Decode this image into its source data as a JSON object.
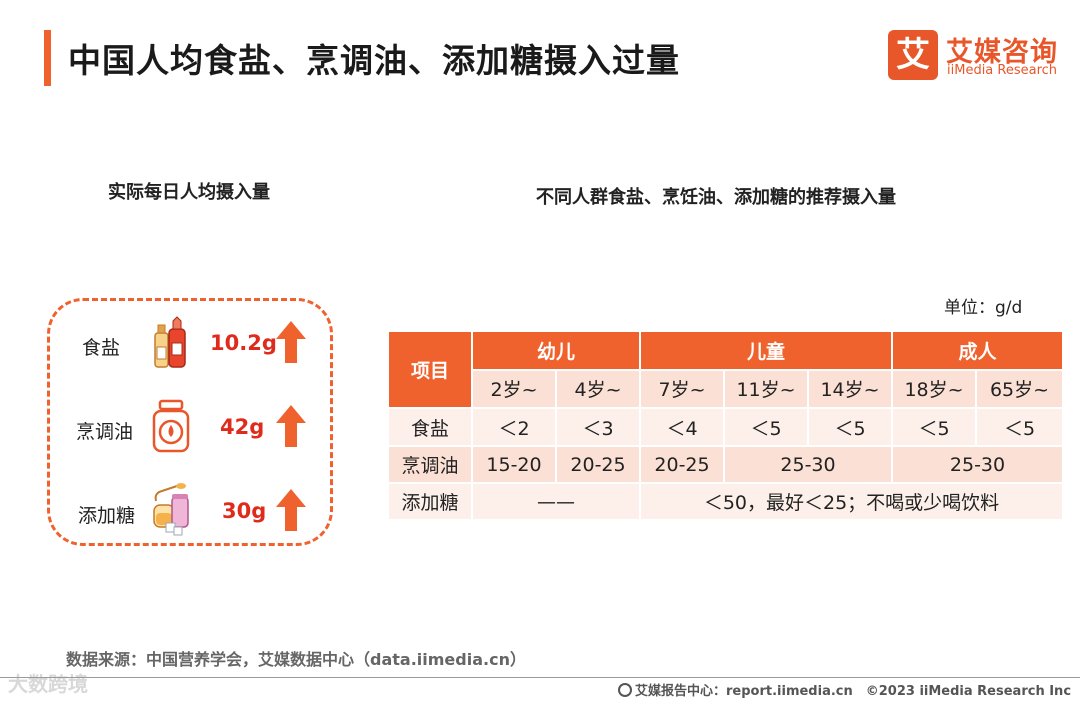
{
  "header": {
    "title": "中国人均食盐、烹调油、添加糖摄入过量",
    "logo_mark": "艾",
    "logo_cn": "艾媒咨询",
    "logo_en": "iiMedia Research"
  },
  "left_panel": {
    "subtitle": "实际每日人均摄入量",
    "items": [
      {
        "name": "食盐",
        "value": "10.2g",
        "icon": "salt-bottles-icon",
        "trend": "up-arrow-icon"
      },
      {
        "name": "烹调油",
        "value": "42g",
        "icon": "oil-jar-icon",
        "trend": "up-arrow-icon"
      },
      {
        "name": "添加糖",
        "value": "30g",
        "icon": "sugar-jars-icon",
        "trend": "up-arrow-icon"
      }
    ]
  },
  "right_panel": {
    "subtitle": "不同人群食盐、烹饪油、添加糖的推荐摄入量",
    "unit": "单位：g/d",
    "table": {
      "item_header": "项目",
      "groups": [
        "幼儿",
        "儿童",
        "成人"
      ],
      "ages": [
        "2岁~",
        "4岁~",
        "7岁~",
        "11岁~",
        "14岁~",
        "18岁~",
        "65岁~"
      ],
      "rows": {
        "salt": {
          "label": "食盐",
          "values": [
            "＜2",
            "＜3",
            "＜4",
            "＜5",
            "＜5",
            "＜5",
            "＜5"
          ]
        },
        "oil": {
          "label": "烹调油",
          "values": [
            "15-20",
            "20-25",
            "20-25",
            "25-30",
            "25-30"
          ]
        },
        "sugar": {
          "label": "添加糖",
          "values": [
            "——",
            "＜50，最好＜25；不喝或少喝饮料"
          ]
        }
      }
    }
  },
  "footer": {
    "source": "数据来源：中国营养学会，艾媒数据中心（data.iimedia.cn）",
    "watermark": "大数跨境",
    "report": "艾媒报告中心：report.iimedia.cn　©2023  iiMedia Research  Inc"
  },
  "colors": {
    "accent": "#f0622d",
    "value_red": "#e02b1c",
    "light_row": "#fdf0ea",
    "mid_row": "#fbe1d5"
  }
}
